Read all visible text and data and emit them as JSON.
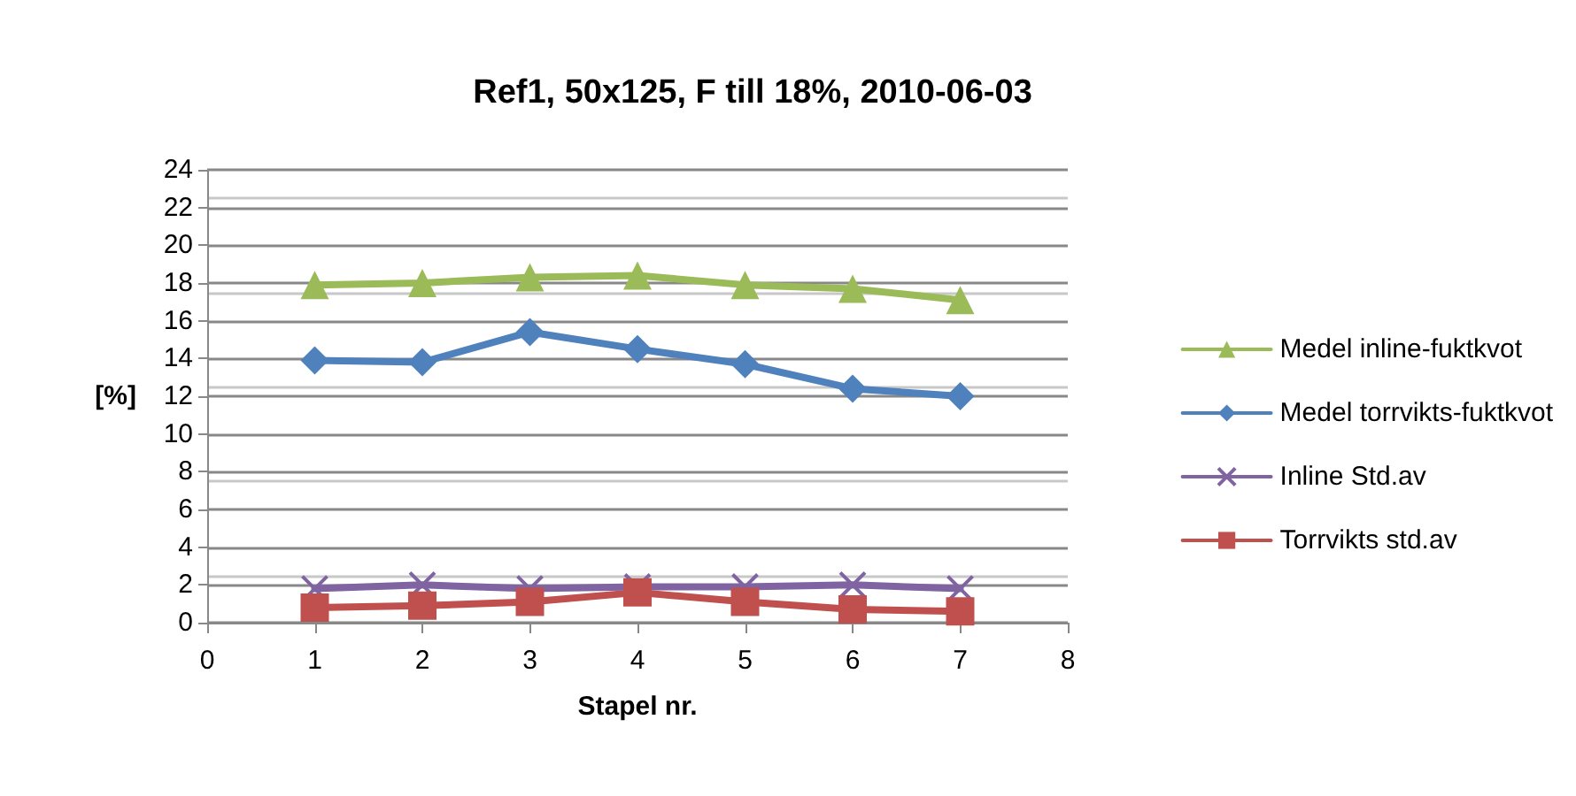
{
  "chart_data": {
    "type": "line",
    "title": "Ref1, 50x125, F till 18%, 2010-06-03",
    "xlabel": "Stapel nr.",
    "ylabel": "[%]",
    "x": [
      1,
      2,
      3,
      4,
      5,
      6,
      7
    ],
    "series": [
      {
        "name": "Medel inline-fuktkvot",
        "color": "#9bbb59",
        "marker": "triangle",
        "values": [
          17.9,
          18.0,
          18.3,
          18.4,
          17.9,
          17.7,
          17.1
        ]
      },
      {
        "name": "Medel torrvikts-fuktkvot",
        "color": "#4f81bd",
        "marker": "diamond",
        "values": [
          13.9,
          13.8,
          15.4,
          14.5,
          13.7,
          12.4,
          12.0
        ]
      },
      {
        "name": "Inline Std.av",
        "color": "#8064a2",
        "marker": "cross",
        "values": [
          1.8,
          2.0,
          1.8,
          1.9,
          1.9,
          2.0,
          1.8
        ]
      },
      {
        "name": "Torrvikts std.av",
        "color": "#c0504d",
        "marker": "square",
        "values": [
          0.8,
          0.9,
          1.1,
          1.6,
          1.1,
          0.7,
          0.6
        ]
      }
    ],
    "xlim": [
      0,
      8
    ],
    "xticks": [
      0,
      1,
      2,
      3,
      4,
      5,
      6,
      7,
      8
    ],
    "ylim": [
      0,
      24
    ],
    "yticks": [
      0,
      2,
      4,
      6,
      8,
      10,
      12,
      14,
      16,
      18,
      20,
      22,
      24
    ],
    "grid": "y",
    "legend": "right",
    "line_style": "solid"
  }
}
